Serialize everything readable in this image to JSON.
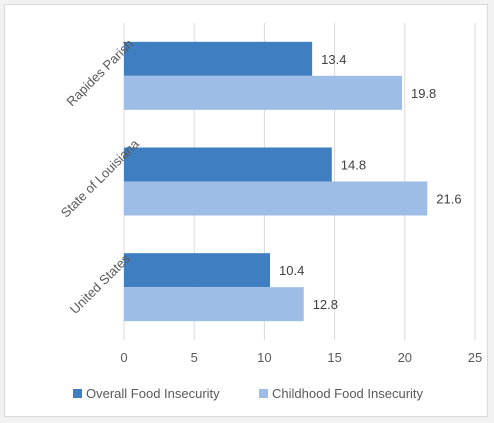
{
  "chart_data": {
    "type": "bar",
    "orientation": "horizontal",
    "title": "",
    "xlabel": "",
    "ylabel": "",
    "categories": [
      "Rapides Parish",
      "State of Louisiana",
      "United States"
    ],
    "series": [
      {
        "name": "Overall Food Insecurity",
        "values": [
          13.4,
          14.8,
          10.4
        ],
        "color": "#3f7fc1"
      },
      {
        "name": "Childhood Food Insecurity",
        "values": [
          19.8,
          21.6,
          12.8
        ],
        "color": "#9dbde6"
      }
    ],
    "xlim": [
      0,
      25
    ],
    "xticks": [
      "0",
      "5",
      "10",
      "15",
      "20",
      "25"
    ],
    "grid": true,
    "grid_color": "#d9d9d9",
    "legend_position": "bottom"
  }
}
